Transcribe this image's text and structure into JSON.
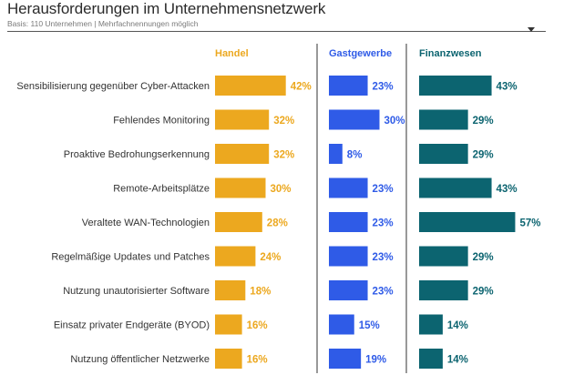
{
  "header": {
    "title": "Herausforderungen im Unternehmensnetzwerk",
    "subtitle": "Basis: 110 Unternehmen | Mehrfachnennungen möglich"
  },
  "chart_data": {
    "type": "bar",
    "orientation": "horizontal",
    "title": "Herausforderungen im Unternehmensnetzwerk",
    "subtitle": "Basis: 110 Unternehmen | Mehrfachnennungen möglich",
    "unit": "%",
    "categories": [
      "Sensibilisierung gegenüber Cyber-Attacken",
      "Fehlendes Monitoring",
      "Proaktive Bedrohungserkennung",
      "Remote-Arbeitsplätze",
      "Veraltete WAN-Technologien",
      "Regelmäßige Updates und Patches",
      "Nutzung unautorisierter Software",
      "Einsatz privater Endgeräte (BYOD)",
      "Nutzung öffentlicher Netzwerke"
    ],
    "series": [
      {
        "name": "Handel",
        "color": "#ECA81F",
        "values": [
          42,
          32,
          32,
          30,
          28,
          24,
          18,
          16,
          16
        ]
      },
      {
        "name": "Gastgewerbe",
        "color": "#2F5BE7",
        "values": [
          23,
          30,
          8,
          23,
          23,
          23,
          23,
          15,
          19
        ]
      },
      {
        "name": "Finanzwesen",
        "color": "#0C6470",
        "values": [
          43,
          29,
          29,
          43,
          57,
          29,
          29,
          14,
          14
        ]
      }
    ]
  }
}
